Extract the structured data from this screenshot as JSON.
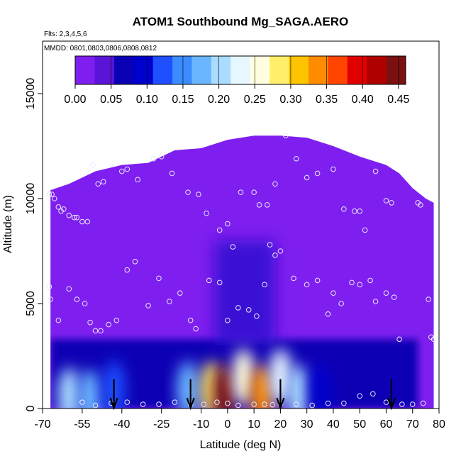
{
  "chart_data": {
    "type": "heatmap",
    "title": "ATOM1 Southbound Mg_SAGA.AERO",
    "subtitle_flights": "Flts: 2,3,4,5,6",
    "subtitle_dates": "MMDD: 0801,0803,0806,0808,0812",
    "xlabel": "Latitude (deg N)",
    "ylabel": "Altitude (m)",
    "xlim": [
      -70,
      80
    ],
    "ylim": [
      0,
      17500
    ],
    "x_ticks": [
      -70,
      -55,
      -40,
      -25,
      -10,
      0,
      10,
      20,
      30,
      40,
      50,
      60,
      70,
      80
    ],
    "x_tick_labels": [
      "-70",
      "-55",
      "-40",
      "-25",
      "-10",
      "0",
      "10",
      "20",
      "30",
      "40",
      "50",
      "60",
      "70",
      "80"
    ],
    "y_ticks": [
      0,
      5000,
      10000,
      15000
    ],
    "y_tick_labels": [
      "0",
      "5000",
      "10000",
      "15000"
    ],
    "colorbar": {
      "range": [
        0,
        0.46
      ],
      "ticks": [
        0,
        0.05,
        0.1,
        0.15,
        0.2,
        0.25,
        0.3,
        0.35,
        0.4,
        0.45
      ],
      "tick_labels": [
        "0.00",
        "0.05",
        "0.10",
        "0.15",
        "0.20",
        "0.25",
        "0.30",
        "0.35",
        "0.40",
        "0.45"
      ],
      "colors": [
        "#7f1fef",
        "#5a14d8",
        "#0a00b4",
        "#0000cd",
        "#1f4fff",
        "#3c8cff",
        "#6ab6ff",
        "#a9dcff",
        "#e6f7ff",
        "#ffffe0",
        "#ffef6a",
        "#ffc400",
        "#ff8c00",
        "#ff4500",
        "#e00000",
        "#b00000",
        "#7a1010"
      ]
    },
    "envelope": [
      [
        -67,
        10400
      ],
      [
        -60,
        10700
      ],
      [
        -50,
        11300
      ],
      [
        -40,
        11600
      ],
      [
        -30,
        11700
      ],
      [
        -20,
        12300
      ],
      [
        -10,
        12400
      ],
      [
        0,
        12800
      ],
      [
        10,
        13000
      ],
      [
        20,
        13000
      ],
      [
        30,
        12900
      ],
      [
        40,
        12500
      ],
      [
        50,
        12000
      ],
      [
        60,
        11600
      ],
      [
        65,
        11200
      ],
      [
        70,
        10500
      ],
      [
        75,
        10000
      ],
      [
        78,
        9800
      ]
    ],
    "hotspots": [
      {
        "lat": -60,
        "alt": 600,
        "value": 0.2
      },
      {
        "lat": -52,
        "alt": 500,
        "value": 0.16
      },
      {
        "lat": -43,
        "alt": 900,
        "value": 0.12
      },
      {
        "lat": -15,
        "alt": 900,
        "value": 0.18
      },
      {
        "lat": -6,
        "alt": 900,
        "value": 0.3
      },
      {
        "lat": -1,
        "alt": 700,
        "value": 0.45
      },
      {
        "lat": 6,
        "alt": 1500,
        "value": 0.25
      },
      {
        "lat": 13,
        "alt": 700,
        "value": 0.34
      },
      {
        "lat": 20,
        "alt": 1500,
        "value": 0.22
      },
      {
        "lat": 27,
        "alt": 700,
        "value": 0.2
      },
      {
        "lat": 35,
        "alt": 800,
        "value": 0.1
      }
    ],
    "arrows_lat": [
      -43,
      -14,
      20,
      62
    ],
    "sample_points": [
      [
        -67.5,
        10200
      ],
      [
        -66.5,
        10200
      ],
      [
        -65.5,
        10000
      ],
      [
        -64,
        9600
      ],
      [
        -63,
        9400
      ],
      [
        -62,
        9500
      ],
      [
        -60,
        9200
      ],
      [
        -58,
        9100
      ],
      [
        -57,
        9100
      ],
      [
        -55,
        8900
      ],
      [
        -53,
        8900
      ],
      [
        -51,
        11600
      ],
      [
        -49,
        10700
      ],
      [
        -47,
        10800
      ],
      [
        -40,
        11300
      ],
      [
        -38,
        11400
      ],
      [
        -34,
        10900
      ],
      [
        -28,
        11900
      ],
      [
        -25,
        12000
      ],
      [
        -21,
        11200
      ],
      [
        -15,
        10300
      ],
      [
        -11,
        10200
      ],
      [
        -8,
        9300
      ],
      [
        -3,
        8500
      ],
      [
        0,
        8800
      ],
      [
        2,
        7700
      ],
      [
        5,
        10300
      ],
      [
        10,
        10300
      ],
      [
        12,
        9700
      ],
      [
        15,
        9700
      ],
      [
        18,
        10700
      ],
      [
        22,
        13000
      ],
      [
        26,
        11900
      ],
      [
        30,
        11000
      ],
      [
        34,
        11200
      ],
      [
        40,
        11400
      ],
      [
        44,
        9500
      ],
      [
        48,
        9400
      ],
      [
        50,
        9400
      ],
      [
        52,
        8500
      ],
      [
        56,
        11300
      ],
      [
        60,
        9900
      ],
      [
        62,
        9800
      ],
      [
        -67.5,
        5800
      ],
      [
        -67,
        5200
      ],
      [
        -64,
        4200
      ],
      [
        -60,
        5700
      ],
      [
        -57,
        5200
      ],
      [
        -54,
        5000
      ],
      [
        -52,
        4100
      ],
      [
        -50,
        3700
      ],
      [
        -48,
        3700
      ],
      [
        -45,
        4000
      ],
      [
        -42,
        4200
      ],
      [
        -38,
        6600
      ],
      [
        -35,
        7000
      ],
      [
        -30,
        4900
      ],
      [
        -26,
        6200
      ],
      [
        -22,
        5100
      ],
      [
        -18,
        5500
      ],
      [
        -14,
        4200
      ],
      [
        -12,
        3800
      ],
      [
        -7,
        6100
      ],
      [
        -3,
        6000
      ],
      [
        0,
        4200
      ],
      [
        4,
        4800
      ],
      [
        8,
        4700
      ],
      [
        11,
        4400
      ],
      [
        14,
        5900
      ],
      [
        16,
        7800
      ],
      [
        18,
        7300
      ],
      [
        20,
        7500
      ],
      [
        25,
        6200
      ],
      [
        30,
        5900
      ],
      [
        34,
        6100
      ],
      [
        38,
        4500
      ],
      [
        40,
        5500
      ],
      [
        43,
        5000
      ],
      [
        47,
        6000
      ],
      [
        50,
        5900
      ],
      [
        54,
        6100
      ],
      [
        56,
        5100
      ],
      [
        60,
        5500
      ],
      [
        63,
        5300
      ],
      [
        65,
        3300
      ],
      [
        -55,
        300
      ],
      [
        -50,
        150
      ],
      [
        -44,
        250
      ],
      [
        -38,
        300
      ],
      [
        -32,
        200
      ],
      [
        -26,
        200
      ],
      [
        -20,
        300
      ],
      [
        -14,
        200
      ],
      [
        -9,
        200
      ],
      [
        -4,
        300
      ],
      [
        0,
        250
      ],
      [
        4,
        150
      ],
      [
        10,
        200
      ],
      [
        14,
        200
      ],
      [
        17,
        180
      ],
      [
        20,
        220
      ],
      [
        26,
        200
      ],
      [
        32,
        150
      ],
      [
        38,
        250
      ],
      [
        44,
        250
      ],
      [
        50,
        600
      ],
      [
        55,
        700
      ],
      [
        60,
        300
      ],
      [
        66,
        200
      ],
      [
        70,
        200
      ],
      [
        74,
        250
      ],
      [
        77,
        3400
      ],
      [
        78,
        3300
      ],
      [
        76,
        5200
      ],
      [
        72,
        9800
      ],
      [
        73,
        9700
      ]
    ]
  }
}
